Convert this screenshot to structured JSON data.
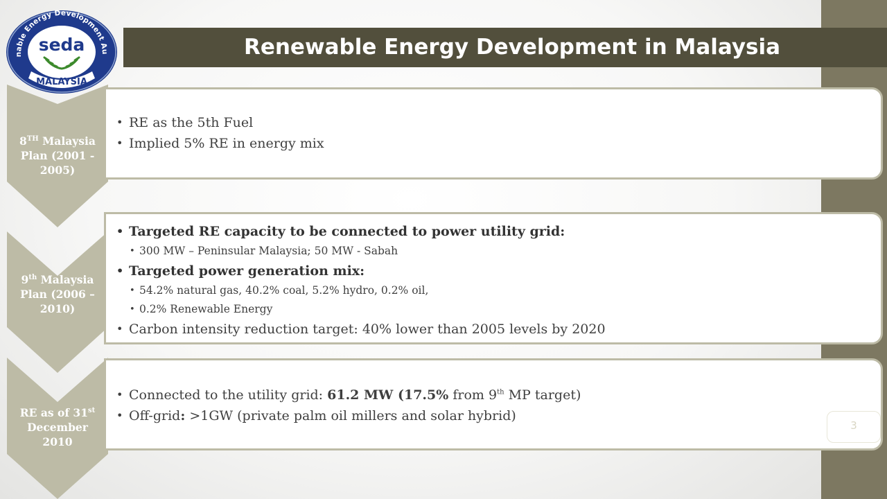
{
  "slide": {
    "title": "Renewable Energy Development in Malaysia",
    "page_number": "3",
    "colors": {
      "title_bar": "#524f3c",
      "side_strip": "#7d7861",
      "chevron": "#bdbba6",
      "text": "#3f3f3f"
    }
  },
  "logo": {
    "arc_text": "Sustainable Energy Development Authority",
    "word": "seda",
    "country": "MALAYSIA"
  },
  "phases": [
    {
      "label_a": "8",
      "label_sup": "TH",
      "label_b": " Malaysia Plan (2001 - 2005)",
      "bullets": [
        "RE as the 5th Fuel",
        "Implied 5% RE in energy mix"
      ]
    },
    {
      "label_a": "9",
      "label_sup": "th",
      "label_b": " Malaysia Plan (2006 – 2010)",
      "bullets": [
        "Targeted RE capacity to be connected to power utility grid:",
        "300 MW – Peninsular Malaysia; 50 MW -  Sabah",
        "Targeted power generation mix:",
        "54.2% natural gas, 40.2% coal, 5.2% hydro, 0.2% oil,",
        "0.2% Renewable Energy",
        "Carbon intensity reduction target: 40% lower than 2005 levels by 2020"
      ]
    },
    {
      "label_a": "RE as of 31",
      "label_sup": "st",
      "label_b": " December 2010",
      "bullets": {
        "grid_prefix": "Connected to the utility grid:  ",
        "grid_value": "61.2 MW (17.5%",
        "grid_mid": " from 9",
        "grid_sup": "th",
        "grid_suffix": " MP target)",
        "offgrid_prefix": "Off-grid",
        "offgrid_colon": ":",
        "offgrid_rest": " >1GW (private palm oil millers and solar hybrid)"
      }
    }
  ]
}
